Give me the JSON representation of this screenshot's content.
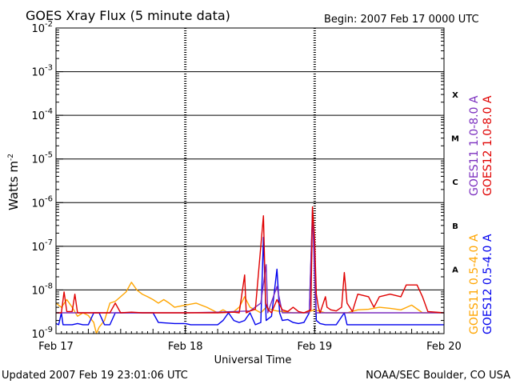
{
  "header": {
    "title": "GOES Xray Flux (5 minute data)",
    "begin": "Begin:  2007 Feb 17 0000 UTC"
  },
  "footer": {
    "updated": "Updated 2007 Feb 19 23:01:06 UTC",
    "credit": "NOAA/SEC Boulder, CO USA"
  },
  "chart_data": {
    "type": "line",
    "title": "GOES Xray Flux (5 minute data)",
    "xlabel": "Universal Time",
    "ylabel": "Watts m",
    "ylabel_superscript": "-2",
    "y_scale": "log",
    "ylim": [
      1e-09,
      0.01
    ],
    "y_ticks": [
      {
        "value": 0.01,
        "base": "10",
        "exp": "-2"
      },
      {
        "value": 0.001,
        "base": "10",
        "exp": "-3"
      },
      {
        "value": 0.0001,
        "base": "10",
        "exp": "-4"
      },
      {
        "value": 1e-05,
        "base": "10",
        "exp": "-5"
      },
      {
        "value": 1e-06,
        "base": "10",
        "exp": "-6"
      },
      {
        "value": 1e-07,
        "base": "10",
        "exp": "-7"
      },
      {
        "value": 1e-08,
        "base": "10",
        "exp": "-8"
      },
      {
        "value": 1e-09,
        "base": "10",
        "exp": "-9"
      }
    ],
    "x_ticks": [
      "Feb 17",
      "Feb 18",
      "Feb 19",
      "Feb 20"
    ],
    "x_unit": "hours since 2007 Feb 17 0000 UTC",
    "xlim": [
      0,
      72
    ],
    "grid": "horizontal at each decade; dotted vertical at day boundaries",
    "flare_classes": [
      {
        "label": "X",
        "value": 0.0003
      },
      {
        "label": "M",
        "value": 3e-05
      },
      {
        "label": "C",
        "value": 3e-06
      },
      {
        "label": "B",
        "value": 3e-07
      },
      {
        "label": "A",
        "value": 3e-08
      }
    ],
    "legend_placement": "right side, vertical",
    "series": [
      {
        "name": "GOES11 1.0-8.0 A",
        "color": "#7b2fbf",
        "points": [
          [
            0,
            3e-09
          ],
          [
            24,
            3e-09
          ],
          [
            30,
            3.1e-09
          ],
          [
            36,
            3.3e-09
          ],
          [
            38,
            5e-09
          ],
          [
            39,
            3.8e-08
          ],
          [
            39.3,
            3e-09
          ],
          [
            41,
            1.2e-08
          ],
          [
            42,
            3e-09
          ],
          [
            47,
            3e-09
          ],
          [
            47.6,
            7e-07
          ],
          [
            48.2,
            3e-09
          ],
          [
            50,
            3e-09
          ],
          [
            52,
            3e-09
          ],
          [
            60,
            3e-09
          ],
          [
            72,
            3e-09
          ]
        ]
      },
      {
        "name": "GOES12 1.0-8.0 A",
        "color": "#e00000",
        "points": [
          [
            0,
            3e-09
          ],
          [
            1,
            3e-09
          ],
          [
            1.5,
            9e-09
          ],
          [
            2,
            3.2e-09
          ],
          [
            3,
            3.2e-09
          ],
          [
            3.5,
            8e-09
          ],
          [
            4,
            3e-09
          ],
          [
            6,
            3e-09
          ],
          [
            10,
            3e-09
          ],
          [
            11,
            5e-09
          ],
          [
            12,
            3e-09
          ],
          [
            14,
            3.1e-09
          ],
          [
            16,
            3e-09
          ],
          [
            18,
            3e-09
          ],
          [
            22,
            3e-09
          ],
          [
            24,
            3e-09
          ],
          [
            30,
            3e-09
          ],
          [
            33,
            3.1e-09
          ],
          [
            34,
            3e-09
          ],
          [
            35,
            2.2e-08
          ],
          [
            35.3,
            3e-09
          ],
          [
            36,
            3.3e-09
          ],
          [
            37,
            3.6e-09
          ],
          [
            38.5,
            5e-07
          ],
          [
            38.9,
            5e-09
          ],
          [
            39.4,
            3.5e-09
          ],
          [
            40,
            3e-09
          ],
          [
            41,
            6e-09
          ],
          [
            42,
            3.5e-09
          ],
          [
            43,
            3.2e-09
          ],
          [
            44,
            4e-09
          ],
          [
            45,
            3.2e-09
          ],
          [
            46,
            3e-09
          ],
          [
            47.3,
            3.5e-09
          ],
          [
            47.6,
            8e-07
          ],
          [
            48,
            1.4e-07
          ],
          [
            48.3,
            8e-09
          ],
          [
            48.7,
            4e-09
          ],
          [
            49,
            3e-09
          ],
          [
            50,
            7e-09
          ],
          [
            50.3,
            4e-09
          ],
          [
            51,
            3.5e-09
          ],
          [
            52,
            3.3e-09
          ],
          [
            53,
            4e-09
          ],
          [
            53.5,
            2.5e-08
          ],
          [
            54,
            5e-09
          ],
          [
            55,
            3.2e-09
          ],
          [
            56,
            8e-09
          ],
          [
            58,
            7e-09
          ],
          [
            59,
            4e-09
          ],
          [
            60,
            7e-09
          ],
          [
            62,
            8e-09
          ],
          [
            64,
            7e-09
          ],
          [
            65,
            1.3e-08
          ],
          [
            67,
            1.3e-08
          ],
          [
            68,
            7e-09
          ],
          [
            69,
            3.2e-09
          ],
          [
            72,
            3e-09
          ]
        ]
      },
      {
        "name": "GOES11 0.5-4.0 A",
        "color": "#ffa500",
        "points": [
          [
            0,
            5e-09
          ],
          [
            1,
            4e-09
          ],
          [
            2,
            6e-09
          ],
          [
            3,
            4e-09
          ],
          [
            4,
            2.5e-09
          ],
          [
            5,
            3e-09
          ],
          [
            6,
            2.6e-09
          ],
          [
            7,
            1.8e-09
          ],
          [
            7.5,
            1e-09
          ],
          [
            8,
            1.4e-09
          ],
          [
            9,
            2e-09
          ],
          [
            10,
            5e-09
          ],
          [
            11,
            5.5e-09
          ],
          [
            12,
            7e-09
          ],
          [
            13,
            9e-09
          ],
          [
            14,
            1.5e-08
          ],
          [
            15,
            1e-08
          ],
          [
            16,
            8e-09
          ],
          [
            17,
            7e-09
          ],
          [
            18,
            6e-09
          ],
          [
            19,
            5e-09
          ],
          [
            20,
            6e-09
          ],
          [
            21,
            5e-09
          ],
          [
            22,
            4e-09
          ],
          [
            24,
            4.5e-09
          ],
          [
            26,
            5e-09
          ],
          [
            28,
            4e-09
          ],
          [
            30,
            3e-09
          ],
          [
            31,
            3.5e-09
          ],
          [
            32,
            3e-09
          ],
          [
            33,
            3.2e-09
          ],
          [
            34,
            4e-09
          ],
          [
            35,
            7e-09
          ],
          [
            36,
            4e-09
          ],
          [
            37,
            3.5e-09
          ],
          [
            38,
            3e-09
          ],
          [
            39,
            4e-09
          ],
          [
            40,
            3.5e-09
          ],
          [
            41,
            3.3e-09
          ],
          [
            42,
            3.2e-09
          ],
          [
            44,
            3e-09
          ],
          [
            46,
            3e-09
          ],
          [
            47,
            3.2e-09
          ],
          [
            48,
            3.5e-09
          ],
          [
            50,
            3e-09
          ],
          [
            54,
            3e-09
          ],
          [
            56,
            3.5e-09
          ],
          [
            58,
            3.6e-09
          ],
          [
            60,
            4e-09
          ],
          [
            62,
            3.8e-09
          ],
          [
            64,
            3.5e-09
          ],
          [
            66,
            4.5e-09
          ],
          [
            68,
            3e-09
          ],
          [
            72,
            3e-09
          ]
        ]
      },
      {
        "name": "GOES12 0.5-4.0 A",
        "color": "#0000ee",
        "points": [
          [
            0,
            1.7e-09
          ],
          [
            0.5,
            1.6e-09
          ],
          [
            1,
            3e-09
          ],
          [
            1.3,
            1.6e-09
          ],
          [
            3,
            1.6e-09
          ],
          [
            4,
            1.7e-09
          ],
          [
            5,
            1.6e-09
          ],
          [
            6,
            1.6e-09
          ],
          [
            7,
            3e-09
          ],
          [
            8,
            3e-09
          ],
          [
            9,
            1.6e-09
          ],
          [
            10,
            1.6e-09
          ],
          [
            11,
            3e-09
          ],
          [
            16,
            3e-09
          ],
          [
            18,
            3e-09
          ],
          [
            19,
            1.8e-09
          ],
          [
            22,
            1.7e-09
          ],
          [
            24,
            1.7e-09
          ],
          [
            25,
            1.6e-09
          ],
          [
            28,
            1.6e-09
          ],
          [
            30,
            1.6e-09
          ],
          [
            31,
            2e-09
          ],
          [
            32,
            3e-09
          ],
          [
            33,
            2e-09
          ],
          [
            34,
            1.8e-09
          ],
          [
            35,
            2e-09
          ],
          [
            36,
            3e-09
          ],
          [
            37,
            1.6e-09
          ],
          [
            38,
            1.8e-09
          ],
          [
            38.5,
            1.6e-07
          ],
          [
            39,
            2e-09
          ],
          [
            40,
            2.5e-09
          ],
          [
            41,
            3e-08
          ],
          [
            41.5,
            3e-09
          ],
          [
            42,
            2e-09
          ],
          [
            43,
            2.1e-09
          ],
          [
            44,
            1.8e-09
          ],
          [
            45,
            1.7e-09
          ],
          [
            46,
            1.8e-09
          ],
          [
            47,
            3e-09
          ],
          [
            47.6,
            5e-07
          ],
          [
            48,
            6e-08
          ],
          [
            48.3,
            2e-09
          ],
          [
            49,
            1.7e-09
          ],
          [
            50,
            1.6e-09
          ],
          [
            52,
            1.6e-09
          ],
          [
            53.5,
            3e-09
          ],
          [
            54,
            1.6e-09
          ],
          [
            60,
            1.6e-09
          ],
          [
            65,
            1.6e-09
          ],
          [
            70,
            1.6e-09
          ],
          [
            72,
            1.6e-09
          ]
        ]
      }
    ]
  }
}
